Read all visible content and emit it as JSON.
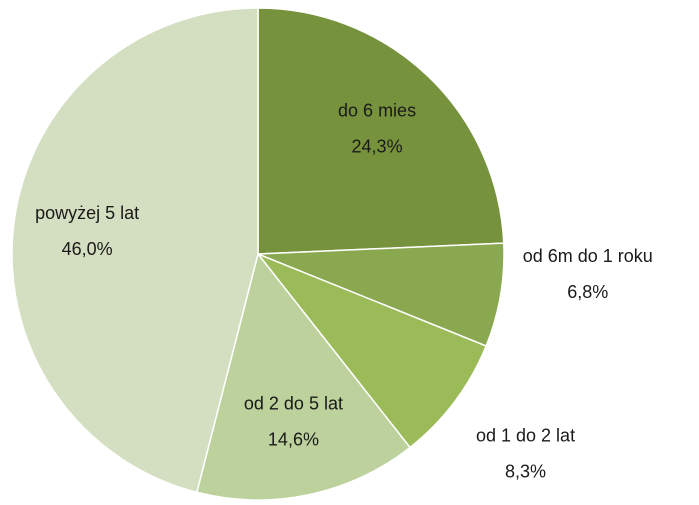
{
  "chart_data": {
    "type": "pie",
    "categories": [
      "do 6 mies",
      "od 6m do 1 roku",
      "od 1 do 2 lat",
      "od 2 do 5 lat",
      "powyżej 5 lat"
    ],
    "values": [
      24.3,
      6.8,
      8.3,
      14.6,
      46.0
    ],
    "value_labels": [
      "24,3%",
      "6,8%",
      "8,3%",
      "14,6%",
      "46,0%"
    ],
    "colors": [
      "#76923c",
      "#8aa84f",
      "#9bbb59",
      "#bcd19b",
      "#d3dfc0"
    ]
  }
}
